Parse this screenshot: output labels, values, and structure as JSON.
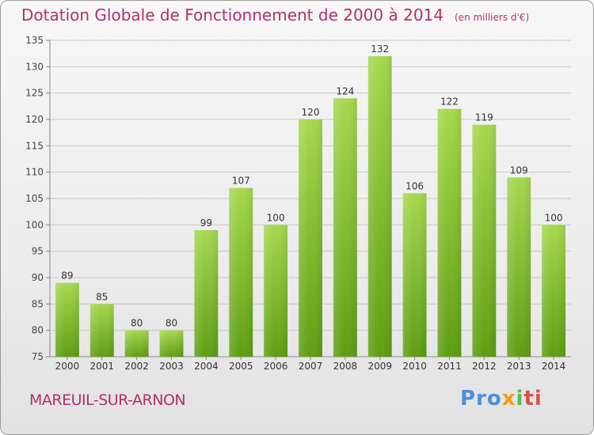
{
  "title": "Dotation Globale de Fonctionnement de 2000 à 2014",
  "subtitle": "(en milliers d'€)",
  "commune": "MAREUIL-SUR-ARNON",
  "logo": "Proxiti",
  "colors": {
    "bar_top": "#a6d84f",
    "bar_bottom": "#5e9e12",
    "title": "#b0306e",
    "grid": "#c8c8c8"
  },
  "chart_data": {
    "type": "bar",
    "title": "Dotation Globale de Fonctionnement de 2000 à 2014",
    "subtitle": "(en milliers d'€)",
    "categories": [
      "2000",
      "2001",
      "2002",
      "2003",
      "2004",
      "2005",
      "2006",
      "2007",
      "2008",
      "2009",
      "2010",
      "2011",
      "2012",
      "2013",
      "2014"
    ],
    "values": [
      89,
      85,
      80,
      80,
      99,
      107,
      100,
      120,
      124,
      132,
      106,
      122,
      119,
      109,
      100
    ],
    "ylim": [
      75,
      135
    ],
    "yticks": [
      75,
      80,
      85,
      90,
      95,
      100,
      105,
      110,
      115,
      120,
      125,
      130,
      135
    ],
    "grid": true,
    "data_labels": true
  }
}
